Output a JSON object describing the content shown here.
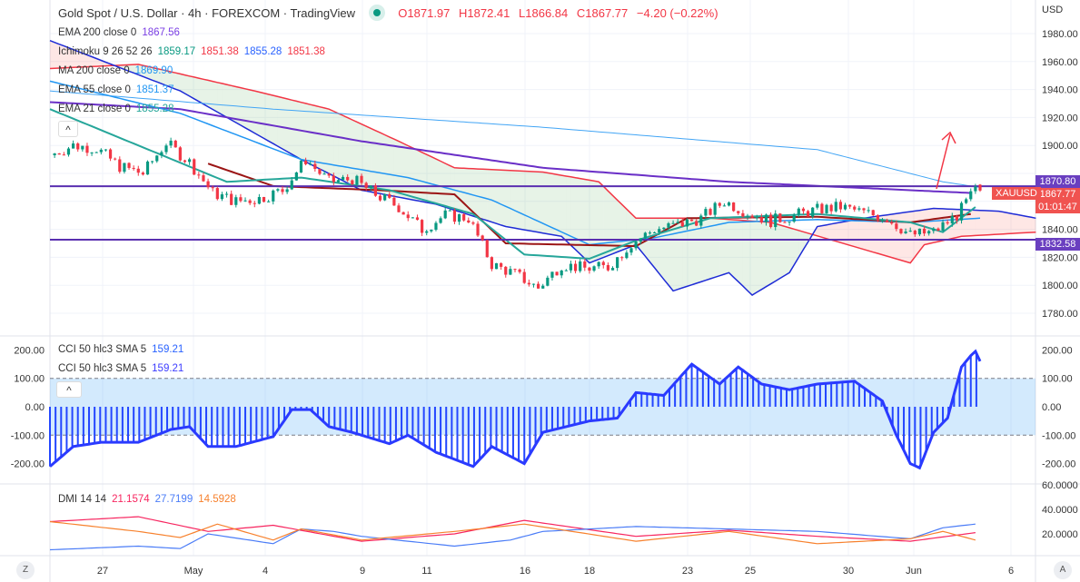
{
  "header": {
    "title": "Gold Spot / U.S. Dollar · 4h · FOREXCOM · TradingView",
    "o": "O1871.97",
    "h": "H1872.41",
    "l": "L1866.84",
    "c": "C1867.77",
    "chg": "−4.20 (−0.22%)"
  },
  "legend": {
    "ema200": {
      "label": "EMA 200 close 0",
      "value": "1867.56",
      "color": "#7b3fe4"
    },
    "ichimoku": {
      "label": "Ichimoku 9 26 52 26",
      "v1": "1859.17",
      "v2": "1851.38",
      "v3": "1855.28",
      "v4": "1851.38"
    },
    "ma200": {
      "label": "MA 200 close 0",
      "value": "1869.90",
      "color": "#2196f3"
    },
    "ema55": {
      "label": "EMA 55 close 0",
      "value": "1851.37",
      "color": "#2196f3"
    },
    "ema21": {
      "label": "EMA 21 close 0",
      "value": "1855.28",
      "color": "#26a69a"
    },
    "cci1": {
      "label": "CCI 50 hlc3 SMA 5",
      "value": "159.21"
    },
    "cci2": {
      "label": "CCI 50 hlc3 SMA 5",
      "value": "159.21"
    },
    "dmi": {
      "label": "DMI 14 14",
      "plus": "21.1574",
      "minus": "27.7199",
      "adx": "14.5928"
    }
  },
  "price_axis": {
    "currency": "USD",
    "ticks": [
      "1980.00",
      "1960.00",
      "1940.00",
      "1920.00",
      "1900.00",
      "1840.00",
      "1820.00",
      "1800.00",
      "1780.00"
    ],
    "level_high": "1870.80",
    "level_low": "1832.58",
    "symbol": "XAUUSD",
    "last": "1867.77",
    "countdown": "01:01:47"
  },
  "cci_axis": {
    "ticks": [
      "200.00",
      "100.00",
      "0.00",
      "-100.00",
      "-200.00"
    ]
  },
  "dmi_axis": {
    "ticks": [
      "60.0000",
      "40.0000",
      "20.0000"
    ]
  },
  "time_axis": {
    "labels": [
      "27",
      "May",
      "4",
      "9",
      "11",
      "16",
      "18",
      "23",
      "25",
      "30",
      "Jun",
      "6"
    ]
  },
  "buttons": {
    "z": "Z",
    "a": "A",
    "collapse": "^"
  },
  "chart_data": {
    "type": "candlestick",
    "price_ylim": [
      1770,
      1990
    ],
    "close": [
      [
        0,
        1893
      ],
      [
        5,
        1900
      ],
      [
        10,
        1898
      ],
      [
        15,
        1885
      ],
      [
        20,
        1880
      ],
      [
        25,
        1902
      ],
      [
        30,
        1888
      ],
      [
        35,
        1866
      ],
      [
        40,
        1860
      ],
      [
        45,
        1862
      ],
      [
        50,
        1868
      ],
      [
        55,
        1890
      ],
      [
        60,
        1874
      ],
      [
        65,
        1876
      ],
      [
        70,
        1865
      ],
      [
        75,
        1856
      ],
      [
        80,
        1840
      ],
      [
        85,
        1850
      ],
      [
        90,
        1848
      ],
      [
        95,
        1815
      ],
      [
        100,
        1808
      ],
      [
        105,
        1798
      ],
      [
        110,
        1815
      ],
      [
        115,
        1812
      ],
      [
        120,
        1813
      ],
      [
        125,
        1830
      ],
      [
        130,
        1840
      ],
      [
        135,
        1843
      ],
      [
        140,
        1848
      ],
      [
        145,
        1860
      ],
      [
        150,
        1852
      ],
      [
        155,
        1846
      ],
      [
        160,
        1850
      ],
      [
        165,
        1854
      ],
      [
        170,
        1856
      ],
      [
        175,
        1852
      ],
      [
        180,
        1848
      ],
      [
        185,
        1836
      ],
      [
        190,
        1838
      ],
      [
        195,
        1850
      ],
      [
        199,
        1868
      ]
    ],
    "last_bar": {
      "o": 1871.97,
      "h": 1872.41,
      "l": 1866.84,
      "c": 1867.77
    },
    "ema200": [
      [
        0,
        1931
      ],
      [
        28,
        1926
      ],
      [
        67,
        1903
      ],
      [
        106,
        1884
      ],
      [
        146,
        1874
      ],
      [
        198,
        1866
      ]
    ],
    "ma200": [
      [
        0,
        1939
      ],
      [
        48,
        1926
      ],
      [
        106,
        1913
      ],
      [
        165,
        1897
      ],
      [
        192,
        1874
      ],
      [
        200,
        1870
      ]
    ],
    "ema55": [
      [
        0,
        1946
      ],
      [
        28,
        1923
      ],
      [
        54,
        1890
      ],
      [
        77,
        1877
      ],
      [
        95,
        1861
      ],
      [
        116,
        1829
      ],
      [
        130,
        1834
      ],
      [
        146,
        1845
      ],
      [
        165,
        1847
      ],
      [
        185,
        1845
      ],
      [
        200,
        1848
      ]
    ],
    "ema21": [
      [
        0,
        1926
      ],
      [
        19,
        1900
      ],
      [
        38,
        1874
      ],
      [
        54,
        1877
      ],
      [
        73,
        1868
      ],
      [
        91,
        1851
      ],
      [
        102,
        1822
      ],
      [
        116,
        1819
      ],
      [
        126,
        1832
      ],
      [
        142,
        1848
      ],
      [
        165,
        1851
      ],
      [
        185,
        1845
      ],
      [
        192,
        1838
      ],
      [
        199,
        1856
      ]
    ],
    "span_a": [
      [
        0,
        1955
      ],
      [
        19,
        1958
      ],
      [
        44,
        1939
      ],
      [
        60,
        1926
      ],
      [
        75,
        1903
      ],
      [
        87,
        1884
      ],
      [
        106,
        1881
      ],
      [
        118,
        1874
      ],
      [
        126,
        1848
      ],
      [
        142,
        1848
      ],
      [
        155,
        1845
      ],
      [
        185,
        1816
      ],
      [
        188,
        1829
      ],
      [
        196,
        1835
      ],
      [
        212,
        1838
      ]
    ],
    "span_b": [
      [
        0,
        1975
      ],
      [
        28,
        1939
      ],
      [
        54,
        1890
      ],
      [
        67,
        1868
      ],
      [
        83,
        1858
      ],
      [
        98,
        1842
      ],
      [
        110,
        1835
      ],
      [
        116,
        1816
      ],
      [
        126,
        1829
      ],
      [
        134,
        1796
      ],
      [
        146,
        1809
      ],
      [
        151,
        1793
      ],
      [
        159,
        1809
      ],
      [
        165,
        1842
      ],
      [
        175,
        1848
      ],
      [
        190,
        1855
      ],
      [
        204,
        1853
      ],
      [
        212,
        1848
      ]
    ],
    "base_line": [
      [
        34,
        1887
      ],
      [
        48,
        1871
      ],
      [
        71,
        1868
      ],
      [
        87,
        1865
      ],
      [
        98,
        1830
      ],
      [
        126,
        1828
      ],
      [
        137,
        1848
      ],
      [
        165,
        1849
      ],
      [
        185,
        1845
      ],
      [
        198,
        1851
      ]
    ],
    "h_levels": [
      1870.8,
      1832.58
    ],
    "cci": [
      [
        0,
        -210
      ],
      [
        5,
        -140
      ],
      [
        11,
        -125
      ],
      [
        19,
        -125
      ],
      [
        26,
        -80
      ],
      [
        30,
        -70
      ],
      [
        34,
        -140
      ],
      [
        40,
        -140
      ],
      [
        48,
        -105
      ],
      [
        52,
        -10
      ],
      [
        56,
        -10
      ],
      [
        60,
        -70
      ],
      [
        65,
        -90
      ],
      [
        73,
        -130
      ],
      [
        77,
        -100
      ],
      [
        83,
        -160
      ],
      [
        91,
        -210
      ],
      [
        95,
        -140
      ],
      [
        102,
        -200
      ],
      [
        106,
        -90
      ],
      [
        116,
        -50
      ],
      [
        122,
        -40
      ],
      [
        126,
        50
      ],
      [
        132,
        40
      ],
      [
        138,
        150
      ],
      [
        144,
        80
      ],
      [
        148,
        140
      ],
      [
        153,
        80
      ],
      [
        159,
        60
      ],
      [
        165,
        80
      ],
      [
        173,
        90
      ],
      [
        179,
        20
      ],
      [
        182,
        -100
      ],
      [
        185,
        -200
      ],
      [
        187,
        -215
      ],
      [
        190,
        -90
      ],
      [
        193,
        -40
      ],
      [
        196,
        140
      ],
      [
        198,
        180
      ],
      [
        199,
        195
      ],
      [
        200,
        160
      ]
    ],
    "cci_band": [
      -100,
      100
    ],
    "di_plus": [
      [
        0,
        30
      ],
      [
        19,
        34
      ],
      [
        34,
        22
      ],
      [
        48,
        27
      ],
      [
        67,
        14
      ],
      [
        87,
        20
      ],
      [
        102,
        31
      ],
      [
        126,
        18
      ],
      [
        146,
        23
      ],
      [
        165,
        18
      ],
      [
        185,
        14
      ],
      [
        199,
        21
      ]
    ],
    "di_minus": [
      [
        0,
        7
      ],
      [
        19,
        10
      ],
      [
        28,
        8
      ],
      [
        34,
        20
      ],
      [
        48,
        12
      ],
      [
        54,
        24
      ],
      [
        61,
        22
      ],
      [
        67,
        18
      ],
      [
        87,
        10
      ],
      [
        99,
        15
      ],
      [
        106,
        22
      ],
      [
        126,
        26
      ],
      [
        146,
        24
      ],
      [
        165,
        22
      ],
      [
        185,
        16
      ],
      [
        192,
        25
      ],
      [
        199,
        28
      ]
    ],
    "adx": [
      [
        0,
        30
      ],
      [
        19,
        22
      ],
      [
        28,
        17
      ],
      [
        36,
        28
      ],
      [
        48,
        15
      ],
      [
        54,
        24
      ],
      [
        67,
        15
      ],
      [
        87,
        22
      ],
      [
        102,
        28
      ],
      [
        126,
        14
      ],
      [
        146,
        22
      ],
      [
        165,
        12
      ],
      [
        185,
        16
      ],
      [
        192,
        22
      ],
      [
        199,
        15
      ]
    ]
  }
}
